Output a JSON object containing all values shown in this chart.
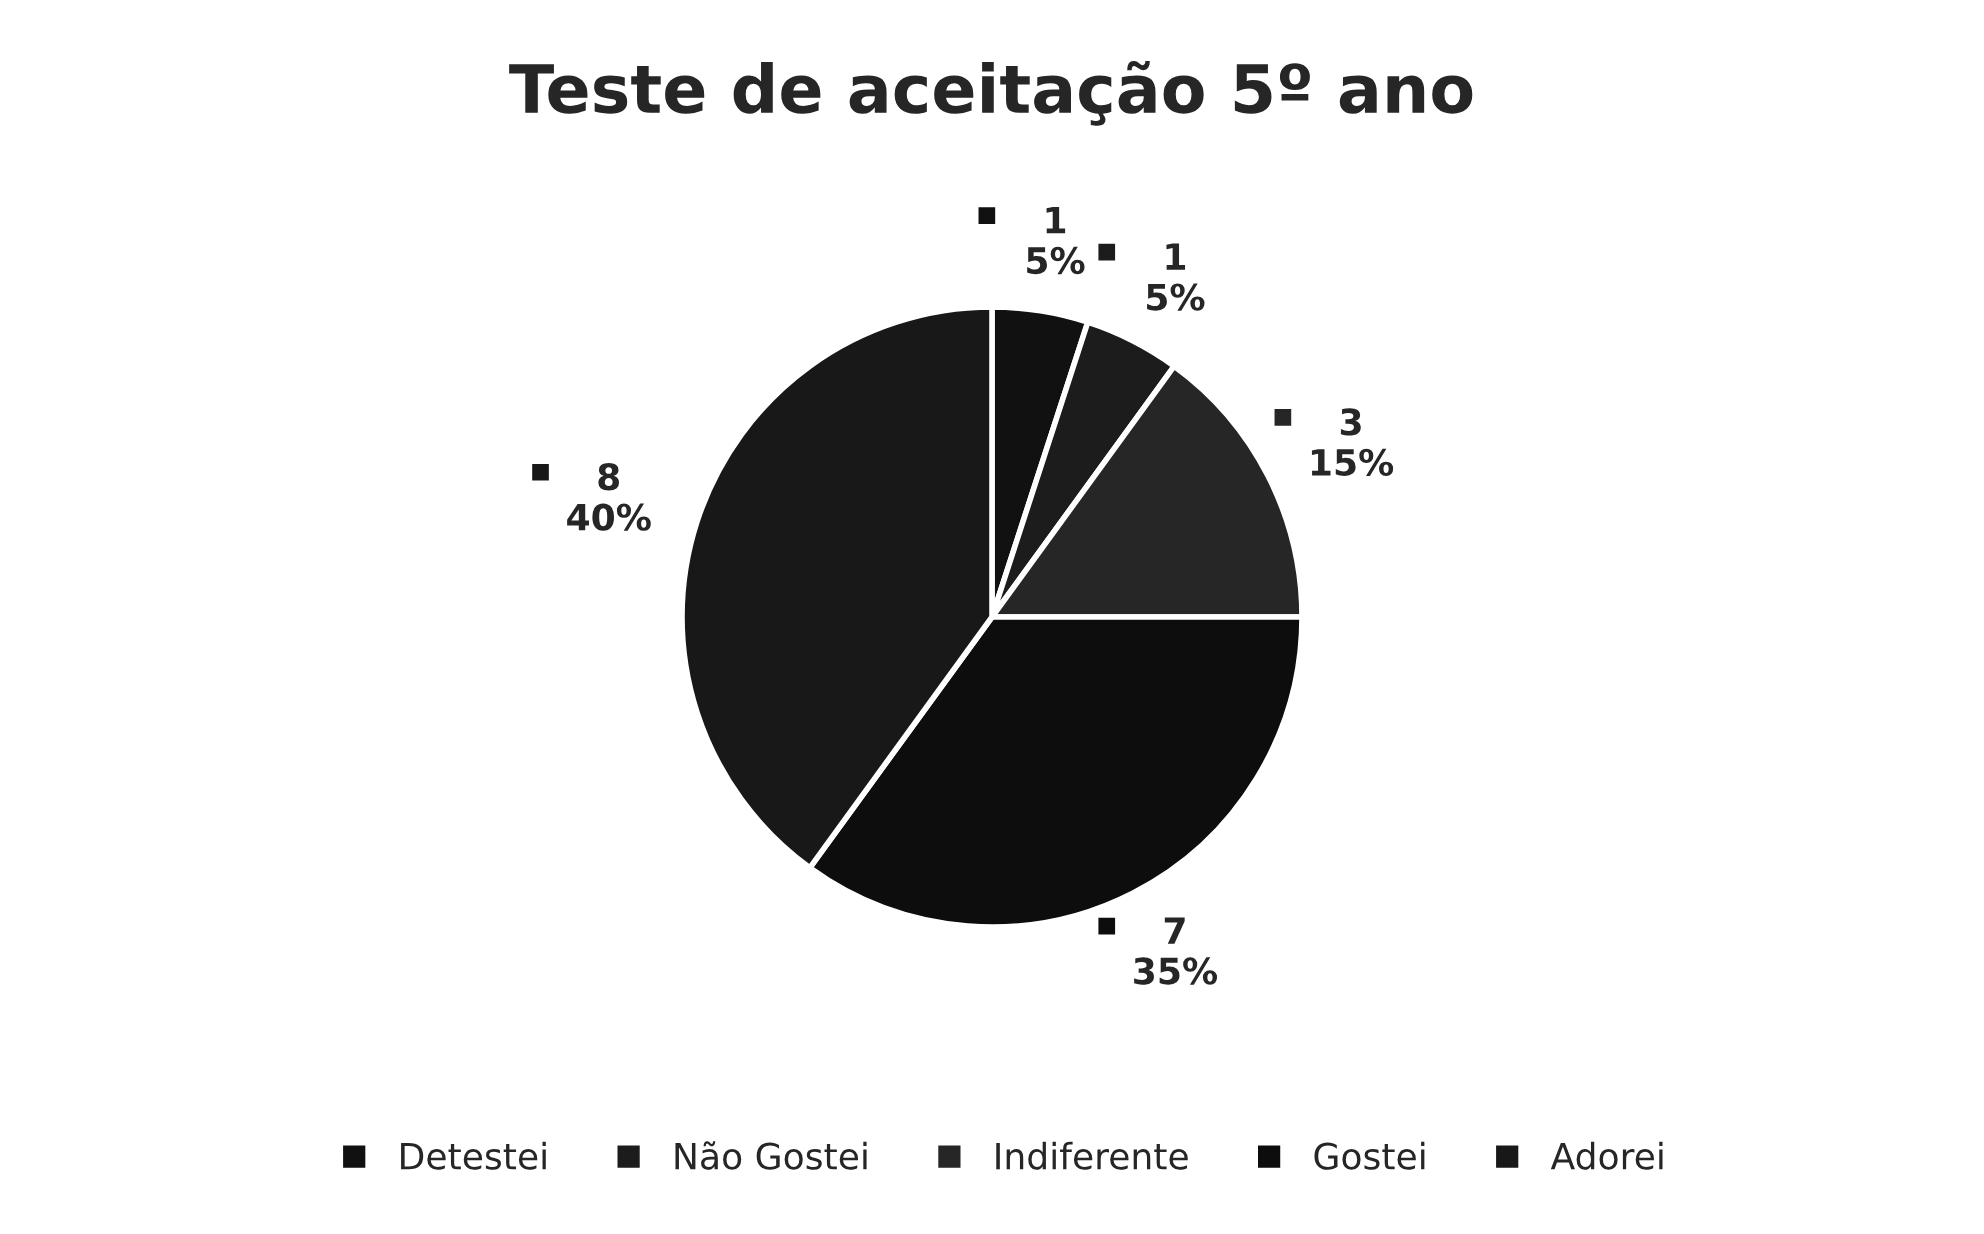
{
  "chart_data": {
    "type": "pie",
    "title": "Teste de aceitação 5º ano",
    "categories": [
      "Detestei",
      "Não Gostei",
      "Indiferente",
      "Gostei",
      "Adorei"
    ],
    "values": [
      1,
      1,
      3,
      7,
      8
    ],
    "value_labels": [
      "1\n5%",
      "1\n5%",
      "3\n15%",
      "7\n35%",
      "8\n40%"
    ],
    "colors": [
      "#111111",
      "#1c1c1c",
      "#262626",
      "#0d0d0d",
      "#181818"
    ],
    "legend": "bottom"
  }
}
